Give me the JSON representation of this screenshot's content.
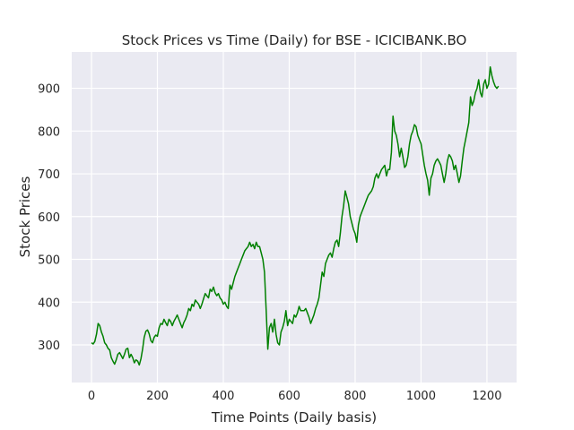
{
  "chart_data": {
    "type": "line",
    "title": "Stock Prices vs Time (Daily) for BSE - ICICIBANK.BO",
    "xlabel": "Time Points (Daily basis)",
    "ylabel": "Stock Prices",
    "xlim": [
      -60,
      1290
    ],
    "ylim": [
      212,
      985
    ],
    "xticks": [
      0,
      200,
      400,
      600,
      800,
      1000,
      1200
    ],
    "yticks": [
      300,
      400,
      500,
      600,
      700,
      800,
      900
    ],
    "grid": true,
    "legend": "none",
    "line_color": "#008000",
    "plot_background": "#eaeaf2",
    "series": [
      {
        "x": [
          0,
          5,
          10,
          15,
          20,
          25,
          30,
          35,
          40,
          45,
          50,
          55,
          60,
          65,
          70,
          75,
          80,
          85,
          90,
          95,
          100,
          105,
          110,
          115,
          120,
          125,
          130,
          135,
          140,
          145,
          150,
          155,
          160,
          165,
          170,
          175,
          180,
          185,
          190,
          195,
          200,
          205,
          210,
          215,
          220,
          225,
          230,
          235,
          240,
          245,
          250,
          255,
          260,
          265,
          270,
          275,
          280,
          285,
          290,
          295,
          300,
          305,
          310,
          315,
          320,
          325,
          330,
          335,
          340,
          345,
          350,
          355,
          360,
          365,
          370,
          375,
          380,
          385,
          390,
          395,
          400,
          405,
          410,
          415,
          420,
          425,
          430,
          435,
          440,
          445,
          450,
          455,
          460,
          465,
          470,
          475,
          480,
          485,
          490,
          495,
          500,
          505,
          510,
          515,
          520,
          525,
          530,
          535,
          540,
          545,
          550,
          555,
          560,
          565,
          570,
          575,
          580,
          585,
          590,
          595,
          600,
          605,
          610,
          615,
          620,
          625,
          630,
          635,
          640,
          645,
          650,
          655,
          660,
          665,
          670,
          675,
          680,
          685,
          690,
          695,
          700,
          705,
          710,
          715,
          720,
          725,
          730,
          735,
          740,
          745,
          750,
          755,
          760,
          765,
          770,
          775,
          780,
          785,
          790,
          795,
          800,
          805,
          810,
          815,
          820,
          825,
          830,
          835,
          840,
          845,
          850,
          855,
          860,
          865,
          870,
          875,
          880,
          885,
          890,
          895,
          900,
          905,
          910,
          915,
          920,
          925,
          930,
          935,
          940,
          945,
          950,
          955,
          960,
          965,
          970,
          975,
          980,
          985,
          990,
          995,
          1000,
          1005,
          1010,
          1015,
          1020,
          1025,
          1030,
          1035,
          1040,
          1045,
          1050,
          1055,
          1060,
          1065,
          1070,
          1075,
          1080,
          1085,
          1090,
          1095,
          1100,
          1105,
          1110,
          1115,
          1120,
          1125,
          1130,
          1135,
          1140,
          1145,
          1150,
          1155,
          1160,
          1165,
          1170,
          1175,
          1180,
          1185,
          1190,
          1195,
          1200,
          1205,
          1210,
          1215,
          1220,
          1225,
          1230,
          1235
        ],
        "y": [
          305,
          302,
          308,
          325,
          350,
          345,
          330,
          320,
          305,
          300,
          292,
          288,
          270,
          262,
          255,
          265,
          278,
          282,
          275,
          268,
          278,
          290,
          292,
          270,
          278,
          270,
          258,
          265,
          262,
          253,
          268,
          290,
          318,
          332,
          335,
          326,
          310,
          305,
          318,
          323,
          320,
          340,
          350,
          348,
          360,
          352,
          345,
          360,
          355,
          345,
          355,
          362,
          370,
          360,
          350,
          340,
          352,
          360,
          370,
          385,
          380,
          395,
          390,
          405,
          400,
          395,
          385,
          395,
          408,
          420,
          415,
          410,
          430,
          425,
          435,
          422,
          415,
          420,
          410,
          405,
          395,
          400,
          390,
          385,
          440,
          430,
          445,
          460,
          470,
          480,
          490,
          500,
          510,
          520,
          525,
          530,
          540,
          530,
          535,
          525,
          540,
          530,
          530,
          515,
          500,
          470,
          380,
          290,
          340,
          350,
          330,
          360,
          325,
          305,
          300,
          330,
          340,
          355,
          380,
          345,
          360,
          355,
          350,
          370,
          365,
          375,
          390,
          380,
          380,
          380,
          385,
          375,
          365,
          350,
          360,
          370,
          385,
          395,
          410,
          440,
          470,
          460,
          490,
          500,
          510,
          515,
          505,
          525,
          540,
          545,
          530,
          560,
          600,
          625,
          660,
          645,
          630,
          600,
          585,
          570,
          560,
          540,
          580,
          600,
          610,
          620,
          630,
          640,
          650,
          655,
          660,
          670,
          690,
          700,
          690,
          700,
          710,
          715,
          720,
          695,
          710,
          710,
          750,
          835,
          800,
          790,
          770,
          740,
          760,
          740,
          715,
          720,
          740,
          770,
          790,
          800,
          815,
          810,
          790,
          780,
          770,
          745,
          720,
          700,
          685,
          650,
          690,
          700,
          720,
          730,
          735,
          728,
          720,
          700,
          680,
          700,
          730,
          745,
          740,
          730,
          710,
          720,
          700,
          680,
          695,
          730,
          760,
          780,
          800,
          820,
          880,
          860,
          870,
          890,
          900,
          920,
          890,
          880,
          910,
          920,
          900,
          910,
          950,
          930,
          915,
          905,
          900,
          905
        ]
      }
    ]
  }
}
